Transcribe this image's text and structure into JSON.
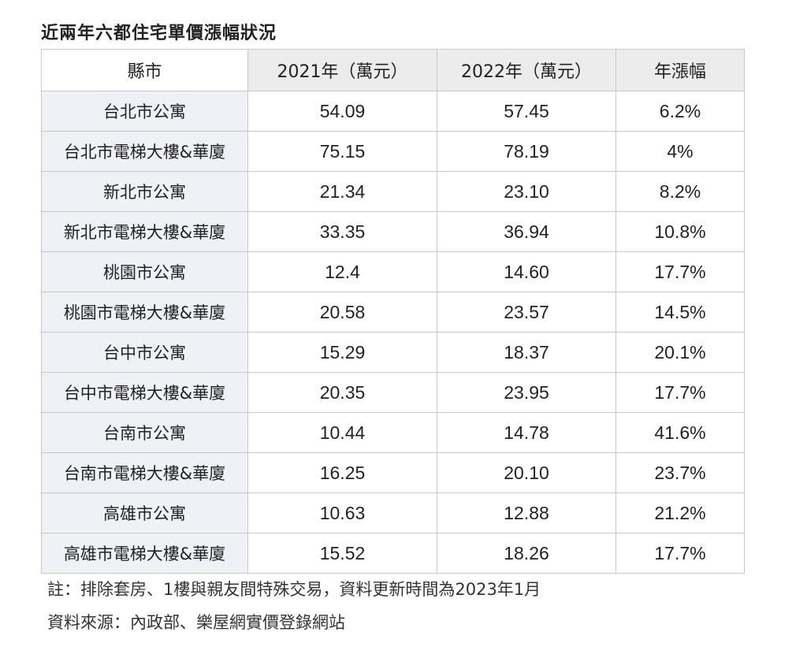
{
  "title": "近兩年六都住宅單價漲幅狀況",
  "table": {
    "headers": [
      "縣市",
      "2021年（萬元）",
      "2022年（萬元）",
      "年漲幅"
    ],
    "rows": [
      [
        "台北市公寓",
        "54.09",
        "57.45",
        "6.2%"
      ],
      [
        "台北市電梯大樓&華廈",
        "75.15",
        "78.19",
        "4%"
      ],
      [
        "新北市公寓",
        "21.34",
        "23.10",
        "8.2%"
      ],
      [
        "新北市電梯大樓&華廈",
        "33.35",
        "36.94",
        "10.8%"
      ],
      [
        "桃園市公寓",
        "12.4",
        "14.60",
        "17.7%"
      ],
      [
        "桃園市電梯大樓&華廈",
        "20.58",
        "23.57",
        "14.5%"
      ],
      [
        "台中市公寓",
        "15.29",
        "18.37",
        "20.1%"
      ],
      [
        "台中市電梯大樓&華廈",
        "20.35",
        "23.95",
        "17.7%"
      ],
      [
        "台南市公寓",
        "10.44",
        "14.78",
        "41.6%"
      ],
      [
        "台南市電梯大樓&華廈",
        "16.25",
        "20.10",
        "23.7%"
      ],
      [
        "高雄市公寓",
        "10.63",
        "12.88",
        "21.2%"
      ],
      [
        "高雄市電梯大樓&華廈",
        "15.52",
        "18.26",
        "17.7%"
      ]
    ]
  },
  "notes": {
    "note": "註：排除套房、1樓與親友間特殊交易，資料更新時間為2023年1月",
    "source": "資料來源：內政部、樂屋網實價登錄網站"
  }
}
